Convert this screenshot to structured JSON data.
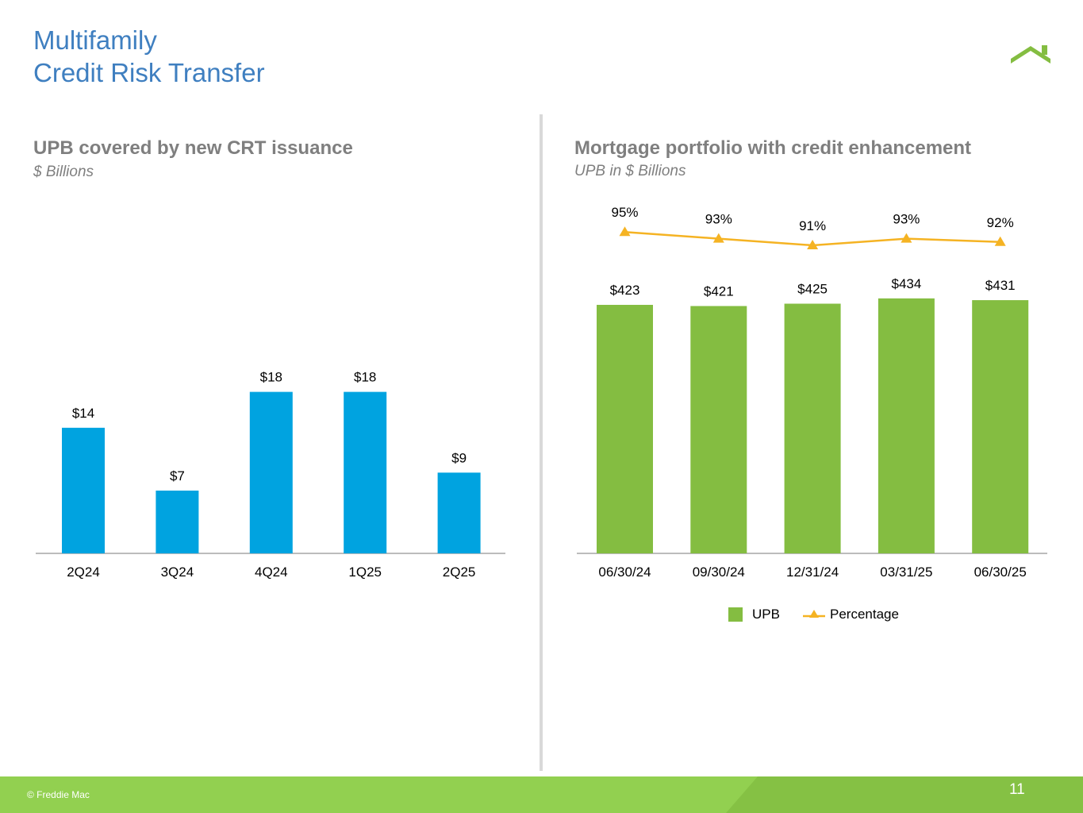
{
  "page": {
    "title_line1": "Multifamily",
    "title_line2": "Credit Risk Transfer",
    "copyright": "© Freddie Mac",
    "page_number": "11",
    "logo_icon": "house-roof-icon"
  },
  "colors": {
    "title": "#3f7fc0",
    "left_bars": "#00a3e0",
    "right_bars": "#84bd41",
    "line": "#f5b323",
    "footer": "#92d050",
    "subtitle_gray": "#7f7f7f"
  },
  "chart_data": [
    {
      "type": "bar",
      "title": "UPB covered by new CRT issuance",
      "subtitle": "$ Billions",
      "categories": [
        "2Q24",
        "3Q24",
        "4Q24",
        "1Q25",
        "2Q25"
      ],
      "values": [
        14,
        7,
        18,
        18,
        9
      ],
      "labels": [
        "$14",
        "$7",
        "$18",
        "$18",
        "$9"
      ],
      "ylim": [
        0,
        18
      ],
      "grid": false,
      "legend": "none"
    },
    {
      "type": "bar",
      "title": "Mortgage portfolio with credit enhancement",
      "subtitle": "UPB in $ Billions",
      "categories": [
        "06/30/24",
        "09/30/24",
        "12/31/24",
        "03/31/25",
        "06/30/25"
      ],
      "series": [
        {
          "name": "UPB",
          "type": "bar",
          "values": [
            423,
            421,
            425,
            434,
            431
          ],
          "labels": [
            "$423",
            "$421",
            "$425",
            "$434",
            "$431"
          ]
        },
        {
          "name": "Percentage",
          "type": "line",
          "marker": "triangle",
          "values": [
            95,
            93,
            91,
            93,
            92
          ],
          "labels": [
            "95%",
            "93%",
            "91%",
            "93%",
            "92%"
          ]
        }
      ],
      "grid": false,
      "legend": "bottom-center"
    }
  ]
}
